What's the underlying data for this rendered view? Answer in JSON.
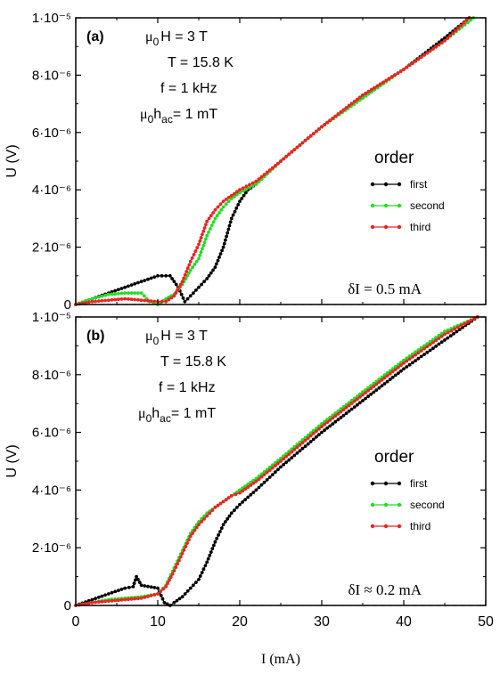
{
  "chart_data": [
    {
      "type": "line",
      "panel_label": "(a)",
      "annotation_lines": [
        {
          "sym": "μ",
          "sub1": "0",
          "rest": "H = 3 T"
        },
        {
          "text": "T = 15.8 K"
        },
        {
          "text": "f = 1 kHz"
        },
        {
          "sym": "μ",
          "sub1": "0",
          "mid": "h",
          "sub2": "ac",
          "rest": "= 1 mT"
        }
      ],
      "delta_label": "δI = 0.5 mA",
      "ylabel": "U (V)",
      "xlim": [
        0,
        50
      ],
      "ylim": [
        0,
        1e-05
      ],
      "y_ticks": [
        {
          "value": 0,
          "label": "0"
        },
        {
          "value": 2e-06,
          "label": "2·10⁻⁶"
        },
        {
          "value": 4e-06,
          "label": "4·10⁻⁶"
        },
        {
          "value": 6e-06,
          "label": "6·10⁻⁶"
        },
        {
          "value": 8e-06,
          "label": "8·10⁻⁶"
        },
        {
          "value": 1e-05,
          "label": "1·10⁻⁵"
        }
      ],
      "legend_title": "order",
      "legend_position": "right",
      "series": [
        {
          "name": "first",
          "color": "#000000",
          "x": [
            0,
            2,
            4,
            6,
            8,
            10,
            11.5,
            12.5,
            13.3,
            14,
            15,
            16,
            17,
            18,
            19,
            20,
            21,
            22,
            25,
            30,
            35,
            40,
            45,
            48
          ],
          "y": [
            0,
            2e-07,
            4e-07,
            6e-07,
            8e-07,
            1e-06,
            1e-06,
            6e-07,
            1e-07,
            3e-07,
            6e-07,
            9e-07,
            1.3e-06,
            2e-06,
            3e-06,
            3.6e-06,
            4e-06,
            4.2e-06,
            5e-06,
            6.2e-06,
            7.3e-06,
            8.2e-06,
            9.3e-06,
            1e-05
          ]
        },
        {
          "name": "second",
          "color": "#22dd22",
          "x": [
            0,
            2,
            4,
            6,
            8,
            9,
            10,
            11,
            12,
            13,
            14,
            15,
            16,
            17,
            18,
            19,
            20,
            22,
            25,
            30,
            35,
            40,
            45,
            48.5
          ],
          "y": [
            0,
            2e-07,
            3.5e-07,
            4e-07,
            4e-07,
            1e-07,
            0,
            2e-07,
            3.5e-07,
            7e-07,
            1.2e-06,
            1.6e-06,
            2.4e-06,
            3e-06,
            3.4e-06,
            3.7e-06,
            3.9e-06,
            4.2e-06,
            5e-06,
            6.2e-06,
            7.2e-06,
            8.2e-06,
            9.2e-06,
            1e-05
          ]
        },
        {
          "name": "third",
          "color": "#ee2222",
          "x": [
            0,
            2,
            4,
            6,
            8,
            10,
            11,
            12,
            13,
            14,
            15,
            16,
            17,
            18,
            19,
            20,
            22,
            25,
            30,
            35,
            40,
            45,
            48
          ],
          "y": [
            0,
            1e-07,
            1.5e-07,
            2e-07,
            1.5e-07,
            1e-07,
            1e-07,
            3e-07,
            8e-07,
            1.5e-06,
            2.1e-06,
            2.9e-06,
            3.3e-06,
            3.6e-06,
            3.8e-06,
            4e-06,
            4.3e-06,
            5e-06,
            6.2e-06,
            7.3e-06,
            8.2e-06,
            9.2e-06,
            1e-05
          ]
        }
      ]
    },
    {
      "type": "line",
      "panel_label": "(b)",
      "annotation_lines": [
        {
          "sym": "μ",
          "sub1": "0",
          "rest": "H = 3 T"
        },
        {
          "text": "T = 15.8 K"
        },
        {
          "text": "f = 1 kHz"
        },
        {
          "sym": "μ",
          "sub1": "0",
          "mid": "h",
          "sub2": "ac",
          "rest": "= 1 mT"
        }
      ],
      "delta_label": "δI ≈ 0.2 mA",
      "ylabel": "U (V)",
      "xlabel": "I (mA)",
      "xlim": [
        0,
        50
      ],
      "ylim": [
        0,
        1e-05
      ],
      "x_ticks": [
        0,
        10,
        20,
        30,
        40,
        50
      ],
      "y_ticks": [
        {
          "value": 0,
          "label": "0"
        },
        {
          "value": 2e-06,
          "label": "2·10⁻⁶"
        },
        {
          "value": 4e-06,
          "label": "4·10⁻⁶"
        },
        {
          "value": 6e-06,
          "label": "6·10⁻⁶"
        },
        {
          "value": 8e-06,
          "label": "8·10⁻⁶"
        },
        {
          "value": 1e-05,
          "label": "1·10⁻⁵"
        }
      ],
      "legend_title": "order",
      "legend_position": "right",
      "series": [
        {
          "name": "first",
          "color": "#000000",
          "x": [
            0,
            2,
            4,
            6,
            7,
            7.4,
            8,
            10,
            10.8,
            11.5,
            12,
            13,
            14,
            15,
            16,
            17,
            18,
            19,
            20,
            22,
            25,
            30,
            35,
            40,
            45,
            49
          ],
          "y": [
            0,
            2e-07,
            4e-07,
            6e-07,
            6.5e-07,
            1e-06,
            7e-07,
            6e-07,
            1e-07,
            0,
            1e-07,
            3e-07,
            6e-07,
            9e-07,
            1.5e-06,
            2.2e-06,
            2.8e-06,
            3.2e-06,
            3.5e-06,
            4e-06,
            4.8e-06,
            6e-06,
            7.1e-06,
            8.2e-06,
            9.2e-06,
            1e-05
          ]
        },
        {
          "name": "second",
          "color": "#22dd22",
          "x": [
            0,
            2,
            4,
            6,
            8,
            10,
            11,
            12,
            13,
            14,
            15,
            16,
            17,
            18,
            19,
            20,
            22,
            25,
            30,
            35,
            40,
            45,
            49
          ],
          "y": [
            0,
            1e-07,
            2e-07,
            2.5e-07,
            3e-07,
            4e-07,
            7e-07,
            1.3e-06,
            1.9e-06,
            2.5e-06,
            2.9e-06,
            3.2e-06,
            3.4e-06,
            3.6e-06,
            3.8e-06,
            4e-06,
            4.4e-06,
            5.1e-06,
            6.3e-06,
            7.4e-06,
            8.5e-06,
            9.5e-06,
            1e-05
          ]
        },
        {
          "name": "third",
          "color": "#ee2222",
          "x": [
            0,
            2,
            4,
            6,
            8,
            10,
            11,
            12,
            13,
            14,
            15,
            16,
            17,
            18,
            19,
            20,
            22,
            25,
            30,
            35,
            40,
            45,
            49
          ],
          "y": [
            0,
            1e-07,
            1.5e-07,
            2e-07,
            2.5e-07,
            4e-07,
            6.5e-07,
            1.2e-06,
            1.8e-06,
            2.4e-06,
            2.8e-06,
            3.1e-06,
            3.4e-06,
            3.6e-06,
            3.8e-06,
            3.9e-06,
            4.3e-06,
            5e-06,
            6.2e-06,
            7.3e-06,
            8.4e-06,
            9.4e-06,
            1e-05
          ]
        }
      ]
    }
  ]
}
